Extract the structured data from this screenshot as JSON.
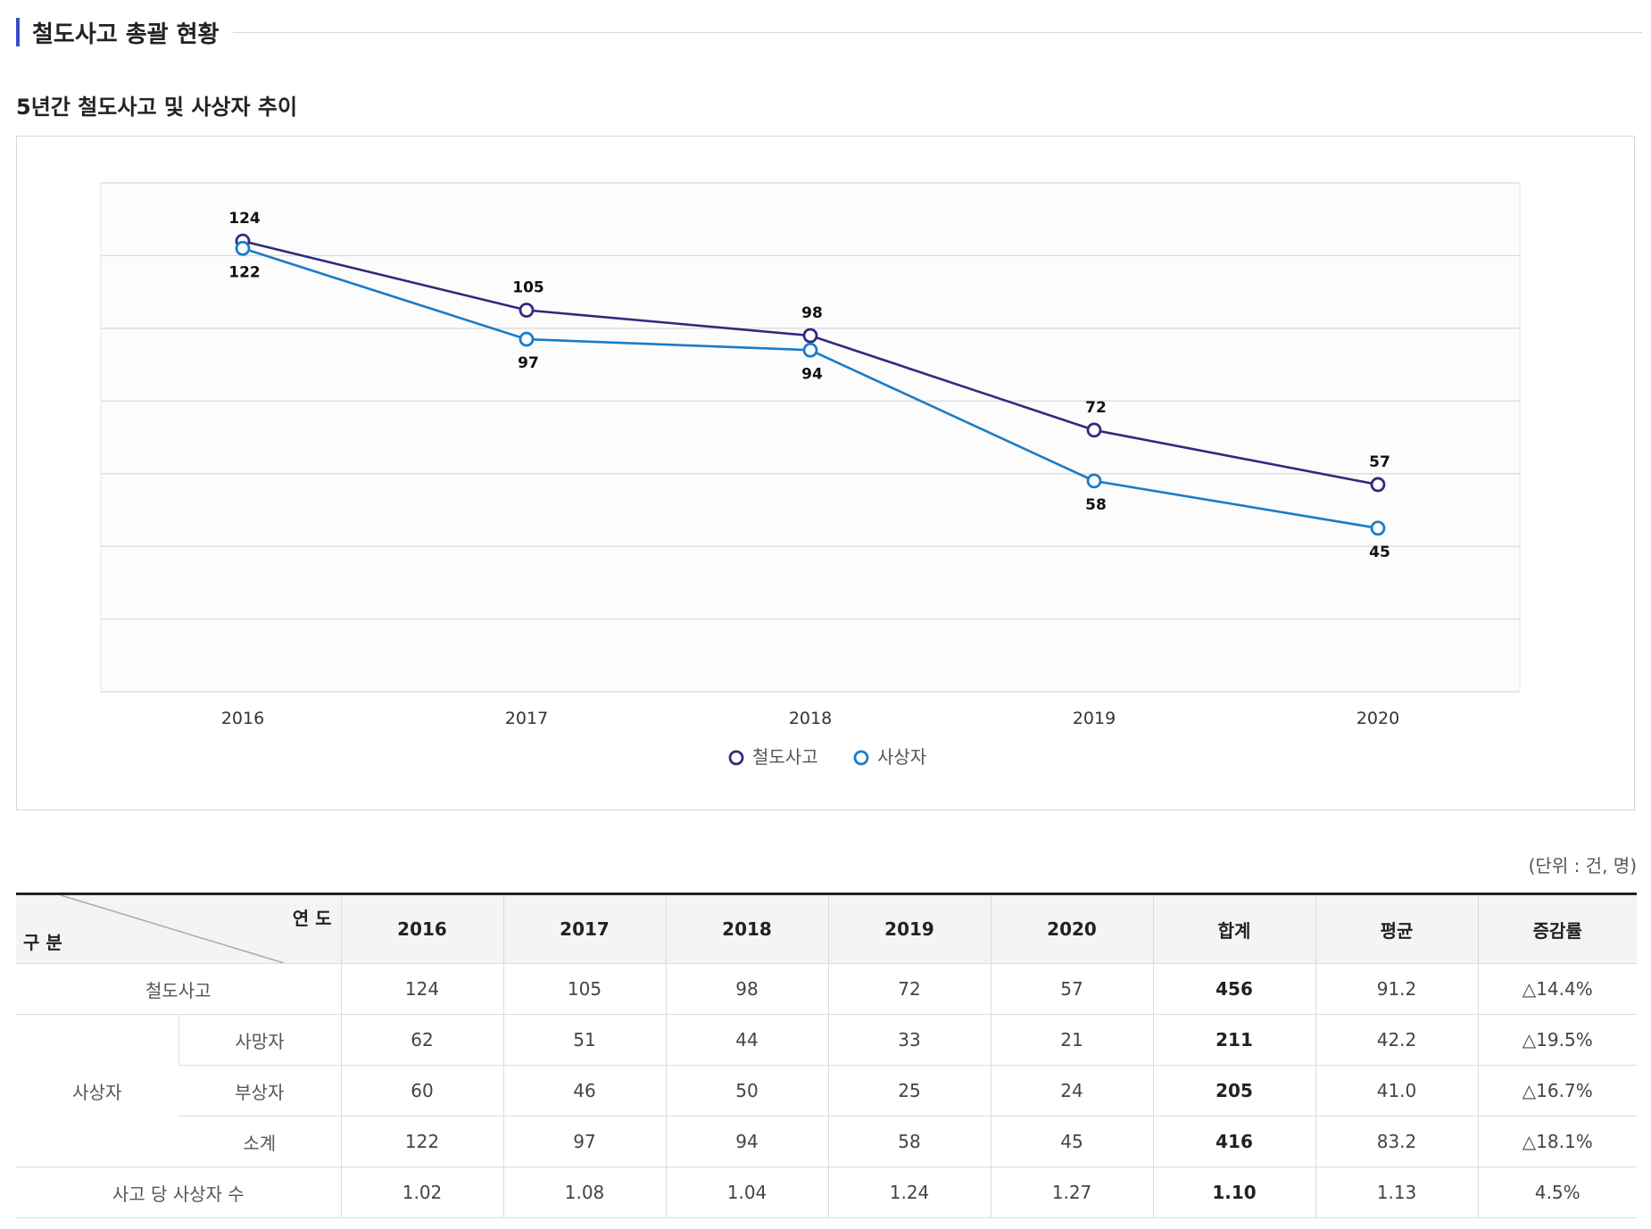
{
  "header": {
    "title": "철도사고 총괄 현황"
  },
  "chart_data": {
    "type": "line",
    "title": "5년간 철도사고 및 사상자 추이",
    "categories": [
      "2016",
      "2017",
      "2018",
      "2019",
      "2020"
    ],
    "ylim": [
      0,
      140
    ],
    "y_gridlines": [
      0,
      20,
      40,
      60,
      80,
      100,
      120,
      140
    ],
    "grid": true,
    "legend_position": "bottom-center",
    "series": [
      {
        "name": "철도사고",
        "color": "#2e2a7e",
        "values": [
          124,
          105,
          98,
          72,
          57
        ],
        "label_position": "above"
      },
      {
        "name": "사상자",
        "color": "#1a7cc8",
        "values": [
          122,
          97,
          94,
          58,
          45
        ],
        "label_position": "below"
      }
    ]
  },
  "table": {
    "unit_note": "(단위 : 건, 명)",
    "corner_top": "연 도",
    "corner_bottom": "구 분",
    "headers": [
      "2016",
      "2017",
      "2018",
      "2019",
      "2020",
      "합계",
      "평균",
      "증감률"
    ],
    "rows": {
      "accidents": {
        "label": "철도사고",
        "values": [
          "124",
          "105",
          "98",
          "72",
          "57",
          "456",
          "91.2",
          "△14.4%"
        ]
      },
      "casualty_group": "사상자",
      "deaths": {
        "label": "사망자",
        "values": [
          "62",
          "51",
          "44",
          "33",
          "21",
          "211",
          "42.2",
          "△19.5%"
        ]
      },
      "injured": {
        "label": "부상자",
        "values": [
          "60",
          "46",
          "50",
          "25",
          "24",
          "205",
          "41.0",
          "△16.7%"
        ]
      },
      "subtotal": {
        "label": "소계",
        "values": [
          "122",
          "97",
          "94",
          "58",
          "45",
          "416",
          "83.2",
          "△18.1%"
        ]
      },
      "per_accident": {
        "label": "사고 당 사상자 수",
        "values": [
          "1.02",
          "1.08",
          "1.04",
          "1.24",
          "1.27",
          "1.10",
          "1.13",
          "4.5%"
        ]
      }
    }
  }
}
